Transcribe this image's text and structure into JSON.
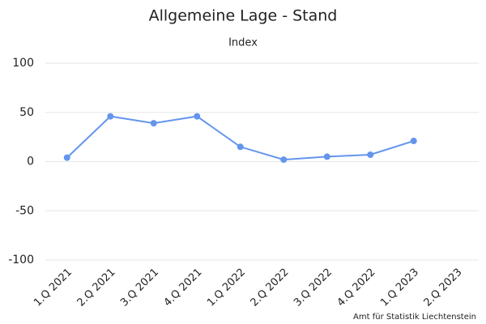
{
  "chart_data": {
    "type": "line",
    "title": "Allgemeine Lage - Stand",
    "subtitle": "Index",
    "categories": [
      "1.Q 2021",
      "2.Q 2021",
      "3.Q 2021",
      "4.Q 2021",
      "1.Q 2022",
      "2.Q 2022",
      "3.Q 2022",
      "4.Q 2022",
      "1.Q 2023",
      "2.Q 2023"
    ],
    "series": [
      {
        "name": "Index",
        "color": "#6495ed",
        "values": [
          4,
          46,
          39,
          46,
          15,
          2,
          5,
          7,
          21,
          null
        ]
      }
    ],
    "ylim": [
      -100,
      100
    ],
    "yticks": [
      -100,
      -50,
      0,
      50,
      100
    ],
    "grid": true,
    "credits": "Amt für Statistik Liechtenstein"
  }
}
